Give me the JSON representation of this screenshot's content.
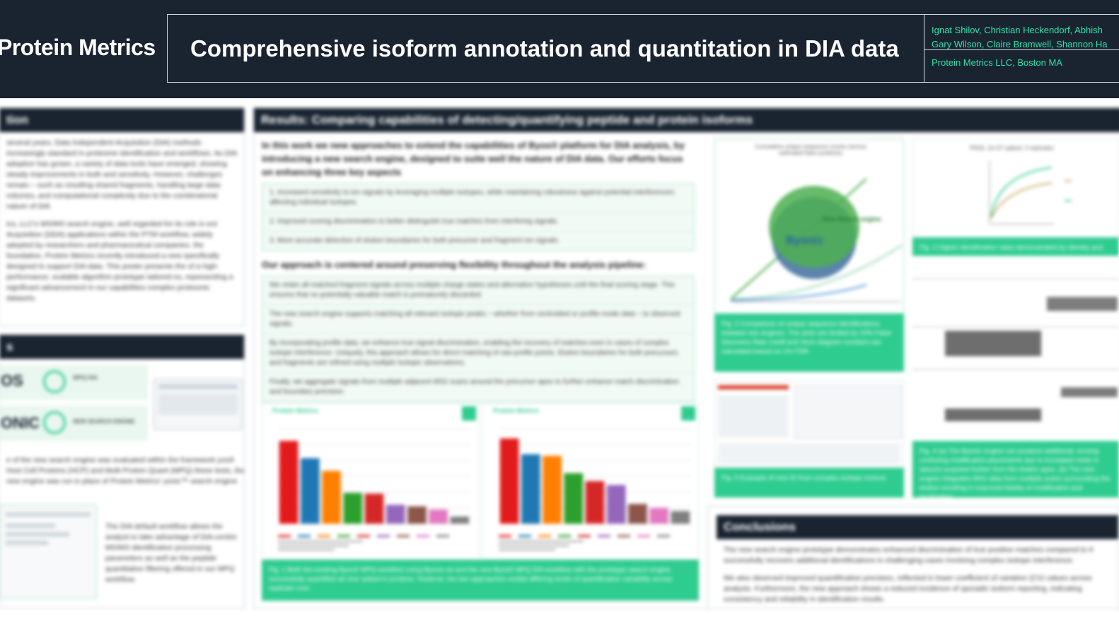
{
  "header": {
    "brand": "Protein Metrics",
    "title": "Comprehensive isoform annotation and quantitation in DIA data",
    "authors_line1": "Ignat Shilov, Christian Heckendorf, Abhish",
    "authors_line2": "Gary Wilson, Claire Bramwell, Shannon Ha",
    "affiliation": "Protein Metrics LLC, Boston MA"
  },
  "intro": {
    "heading": "tion",
    "p1": "several years, Data Independent Acquisition (DIA) methods increasingly standard in proteome identification and workflows. As DIA adoption has grown, a variety of data tools have emerged, showing steady improvements in both and sensitivity. However, challenges remain – such as resulting shared fragments, handling large data volumes, and computational complexity due to the combinatorial nature of DIA",
    "p2": "ics, LLC's MS/MS search engine, well regarded for its role in ent Acquisition (DDA) applications within the PTM workflow, widely adopted by researchers and pharmaceutical companies. the foundation, Protein Metrics recently introduced a new specifically designed to support DIA data. This poster presents the of a high-performance, scalable algorithm prototype tailored es, representing a significant advancement in our capabilities complex proteomic datasets."
  },
  "methods": {
    "heading": "s",
    "logo1": "OS",
    "logo2": "ONIC",
    "badge1": "WPQ DIA",
    "badge2": "NEW SEARCH ENGINE",
    "p1": "e of the new search engine was evaluated within the framework yos® Host Cell Proteins (HCP) and Multi Protein Quant (MPQ) these tests, the new engine was run in place of Protein Metrics' yonic™ search engine.",
    "p2": "The DIA default workflow allows the analyst to take advantage of DIA-centric MS/MS identification processing parameters as well as the peptide quantitation filtering offered in our MPQ workflow."
  },
  "results": {
    "heading_bold": "Results:",
    "heading_rest": "Comparing capabilities of detecting/quantifying peptide and protein isoforms",
    "intro": "In this work we new approaches to extend the capabilities of Byos® platform for DIA analysis, by introducing a new search engine, designed to suite well the nature of DIA data. Our efforts focus on enhancing three key aspects",
    "aims": [
      "1. Increased sensitivity to ion signals by leveraging multiple isotopes, while maintaining robustness against potential interferences affecting individual isotopes.",
      "2. Improved scoring discrimination to better distinguish true matches from interfering signals.",
      "3. More accurate detection of elution boundaries for both precursor and fragment ion signals."
    ],
    "approach": "Our approach is centered around preserving flexibility throughout the analysis pipeline:",
    "bullets": [
      "We retain all matched fragment signals across multiple charge states and alternative hypotheses until the final scoring stage. This ensures that no potentially valuable match is prematurely discarded.",
      "The new search engine supports matching all relevant isotopic peaks – whether from centroided or profile-mode data – to observed signals.",
      "By incorporating profile data, we enhance true signal discrimination, enabling the recovery of matches even in cases of complex isotope interference. Uniquely, this approach allows for direct matching of raw profile points. Elution boundaries for both precursors and fragments are refined using multiple isotopic observations.",
      "Finally, we aggregate signals from multiple adjacent MS2 scans around the precursor apex to further enhance match discrimination and boundary precision."
    ],
    "chart_label": "Protein Metrics",
    "fig1_caption": "Fig. 1 Both the existing Byos® MPQ workflow using Byonic-ok and the new Byos® MPQ DIA workflow with the prototype search engine successfully quantified all nine spiked-in proteins. However, the two approaches exhibit differing levels of quantification variability across replicate runs.",
    "fig2_title": "Cumulative unique sequence counts (versus estimated false positives)",
    "venn_a": "Byonic",
    "venn_b": "New Search engine",
    "fig2_caption": "Fig. 2 Comparison of unique sequence identifications between two engines. The plots are limited by 10% False Discovery Rate cutoff and Venn diagram numbers are calculated based on 1% FDR.",
    "fig3_title": "PASS, 2e+07 spiked, 3 replicates",
    "fig3_caption": "Fig. 3 Higher identification rates demonstrated by Identity and",
    "fig4_caption": "Fig. 4 (a) The Byonic engine can produce additional, scoring confusing modification placements due to increased noise in spectra acquired further from the elution apex. (b) The new engine integrates MS2 data from multiple scans surrounding the elution resulting in improved fidelity of modification and localization.",
    "fig5_caption": "Fig. 5 Example of new ID from complex isotope mixture"
  },
  "conclusions": {
    "heading": "Conclusions",
    "p1": "The new search engine prototype demonstrates enhanced discrimination of true positive matches compared to It successfully recovers additional identifications in challenging cases involving complex isotope interference.",
    "p2": "We also observed improved quantification precision, reflected in lower coefficient of variation (CV) values across analysis. Furthermore, the new approach shows a reduced incidence of sporadic isoform reporting, indicating consistency and reliability in identification results."
  },
  "chart_data": [
    {
      "type": "bar",
      "categories": [
        "P1",
        "P2",
        "P3",
        "P4",
        "P5",
        "P6",
        "P7",
        "P8",
        "P9"
      ],
      "values": [
        105,
        83,
        67,
        39,
        38,
        24,
        22,
        18,
        9
      ],
      "ylim": [
        0,
        120
      ],
      "colors": [
        "#e31a1c",
        "#1f78b4",
        "#ff7f00",
        "#2ca02c",
        "#d62728",
        "#9467bd",
        "#8c564b",
        "#e377c2",
        "#7f7f7f"
      ]
    },
    {
      "type": "bar",
      "categories": [
        "P1",
        "P2",
        "P3",
        "P4",
        "P5",
        "P6",
        "P7",
        "P8",
        "P9"
      ],
      "values": [
        108,
        88,
        86,
        64,
        54,
        49,
        25,
        20,
        16
      ],
      "ylim": [
        0,
        120
      ],
      "colors": [
        "#e31a1c",
        "#1f78b4",
        "#ff7f00",
        "#2ca02c",
        "#d62728",
        "#9467bd",
        "#8c564b",
        "#e377c2",
        "#7f7f7f"
      ]
    }
  ]
}
